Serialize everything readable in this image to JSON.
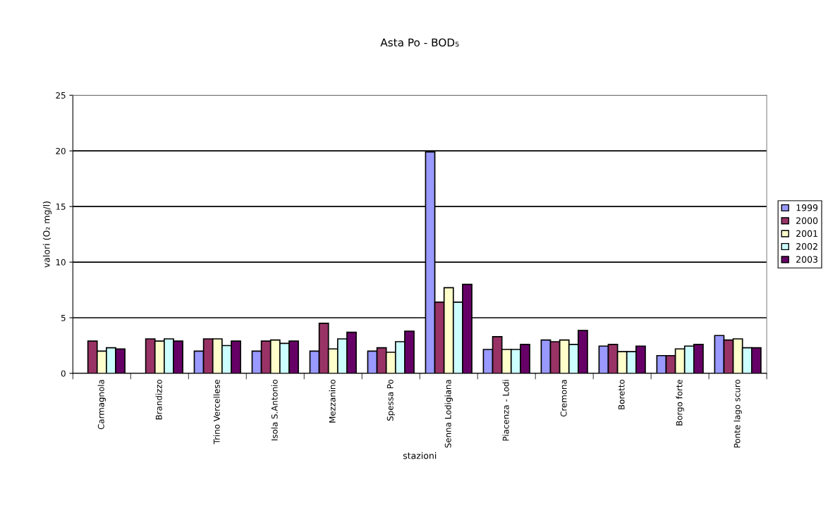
{
  "chart_data": {
    "type": "bar",
    "title": "Asta Po - BOD₅",
    "xlabel": "stazioni",
    "ylabel": "valori (O₂ mg/l)",
    "categories": [
      "Carmagnola",
      "Brandizzo",
      "Trino Vercellese",
      "Isola S.Antonio",
      "Mezzanino",
      "Spessa Po",
      "Senna Lodigiana",
      "Piacenza - Lodi",
      "Cremona",
      "Boretto",
      "Borgo forte",
      "Ponte lago scuro"
    ],
    "series": [
      {
        "name": "1999",
        "color": "#9999ff",
        "values": [
          null,
          null,
          2.0,
          2.0,
          2.0,
          2.0,
          19.9,
          2.15,
          3.0,
          2.45,
          1.6,
          3.4
        ]
      },
      {
        "name": "2000",
        "color": "#993366",
        "values": [
          2.9,
          3.1,
          3.1,
          2.9,
          4.5,
          2.3,
          6.4,
          3.3,
          2.85,
          2.6,
          1.6,
          3.0
        ]
      },
      {
        "name": "2001",
        "color": "#ffffcc",
        "values": [
          2.0,
          2.9,
          3.1,
          3.0,
          2.2,
          1.9,
          7.7,
          2.15,
          3.0,
          1.95,
          2.2,
          3.1
        ]
      },
      {
        "name": "2002",
        "color": "#ccffff",
        "values": [
          2.3,
          3.1,
          2.5,
          2.7,
          3.1,
          2.85,
          6.4,
          2.15,
          2.6,
          1.95,
          2.45,
          2.3
        ]
      },
      {
        "name": "2003",
        "color": "#660066",
        "values": [
          2.2,
          2.9,
          2.9,
          2.9,
          3.7,
          3.8,
          8.0,
          2.6,
          3.85,
          2.45,
          2.6,
          2.3
        ]
      }
    ],
    "ylim": [
      0,
      25
    ],
    "yticks": [
      0,
      5,
      10,
      15,
      20,
      25
    ],
    "grid": "y",
    "legend": "right"
  }
}
